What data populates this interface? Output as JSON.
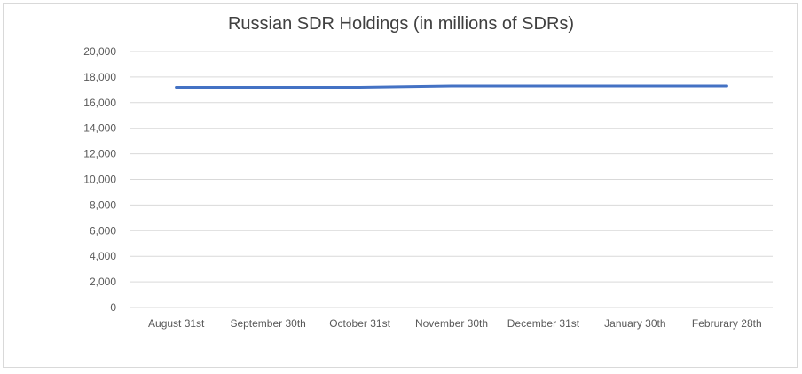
{
  "chart_data": {
    "type": "line",
    "title": "Russian SDR Holdings (in millions of SDRs)",
    "xlabel": "",
    "ylabel": "",
    "categories": [
      "August 31st",
      "September 30th",
      "October 31st",
      "November 30th",
      "December 31st",
      "January 30th",
      "Februrary 28th"
    ],
    "series": [
      {
        "values": [
          17200,
          17200,
          17200,
          17300,
          17300,
          17300,
          17300
        ]
      }
    ],
    "ylim": [
      0,
      20000
    ],
    "yticks": [
      0,
      2000,
      4000,
      6000,
      8000,
      10000,
      12000,
      14000,
      16000,
      18000,
      20000
    ],
    "ytick_labels": [
      "0",
      "2,000",
      "4,000",
      "6,000",
      "8,000",
      "10,000",
      "12,000",
      "14,000",
      "16,000",
      "18,000",
      "20,000"
    ],
    "grid": true,
    "legend": "none",
    "colors": {
      "line": "#4472c4",
      "grid": "#d9d9d9",
      "text": "#595959",
      "title": "#404040"
    }
  }
}
